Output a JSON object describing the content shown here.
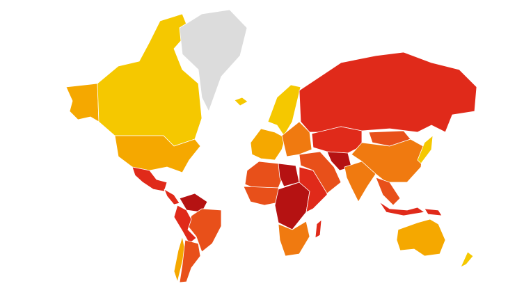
{
  "map": {
    "type": "choropleth-world",
    "colors": {
      "no_data": "#dcdcdc",
      "level_1": "#f5c800",
      "level_2": "#f5a800",
      "level_3": "#f07a10",
      "level_4": "#e8501a",
      "level_5": "#e02a1a",
      "level_6": "#b51212"
    },
    "regions": [
      {
        "id": "alaska",
        "level": "level_2"
      },
      {
        "id": "canada",
        "level": "level_1"
      },
      {
        "id": "greenland",
        "level": "no_data"
      },
      {
        "id": "iceland",
        "level": "level_1"
      },
      {
        "id": "usa",
        "level": "level_2"
      },
      {
        "id": "mexico",
        "level": "level_5"
      },
      {
        "id": "central-america",
        "level": "level_5"
      },
      {
        "id": "venezuela",
        "level": "level_6"
      },
      {
        "id": "brazil",
        "level": "level_4"
      },
      {
        "id": "andes",
        "level": "level_5"
      },
      {
        "id": "chile",
        "level": "level_2"
      },
      {
        "id": "argentina",
        "level": "level_4"
      },
      {
        "id": "scandinavia",
        "level": "level_1"
      },
      {
        "id": "western-europe",
        "level": "level_2"
      },
      {
        "id": "eastern-europe",
        "level": "level_3"
      },
      {
        "id": "russia",
        "level": "level_5"
      },
      {
        "id": "north-africa",
        "level": "level_4"
      },
      {
        "id": "libya",
        "level": "level_6"
      },
      {
        "id": "west-africa",
        "level": "level_4"
      },
      {
        "id": "central-africa",
        "level": "level_6"
      },
      {
        "id": "east-africa",
        "level": "level_5"
      },
      {
        "id": "southern-africa",
        "level": "level_3"
      },
      {
        "id": "madagascar",
        "level": "level_5"
      },
      {
        "id": "middle-east",
        "level": "level_4"
      },
      {
        "id": "central-asia",
        "level": "level_5"
      },
      {
        "id": "afghanistan",
        "level": "level_6"
      },
      {
        "id": "india",
        "level": "level_3"
      },
      {
        "id": "china",
        "level": "level_3"
      },
      {
        "id": "mongolia",
        "level": "level_4"
      },
      {
        "id": "japan",
        "level": "level_1"
      },
      {
        "id": "southeast-asia",
        "level": "level_4"
      },
      {
        "id": "indonesia",
        "level": "level_5"
      },
      {
        "id": "papua",
        "level": "level_5"
      },
      {
        "id": "australia",
        "level": "level_2"
      },
      {
        "id": "new-zealand",
        "level": "level_1"
      }
    ]
  }
}
